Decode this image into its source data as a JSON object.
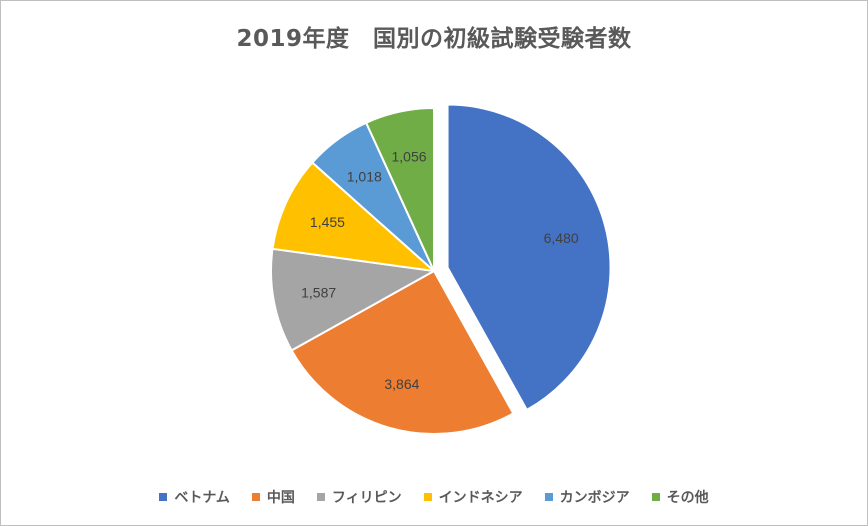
{
  "chart_data": {
    "type": "pie",
    "title": "2019年度　国別の初級試験受験者数",
    "categories": [
      "ベトナム",
      "中国",
      "フィリピン",
      "インドネシア",
      "カンボジア",
      "その他"
    ],
    "values": [
      6480,
      3864,
      1587,
      1455,
      1018,
      1056
    ],
    "data_labels": [
      "6,480",
      "3,864",
      "1,587",
      "1,455",
      "1,018",
      "1,056"
    ],
    "colors": [
      "#4472C4",
      "#ED7D31",
      "#A5A5A5",
      "#FFC000",
      "#5B9BD5",
      "#70AD47"
    ],
    "exploded": [
      true,
      false,
      false,
      false,
      false,
      false
    ],
    "legend_position": "bottom",
    "start_angle_deg": 0,
    "direction": "clockwise"
  }
}
